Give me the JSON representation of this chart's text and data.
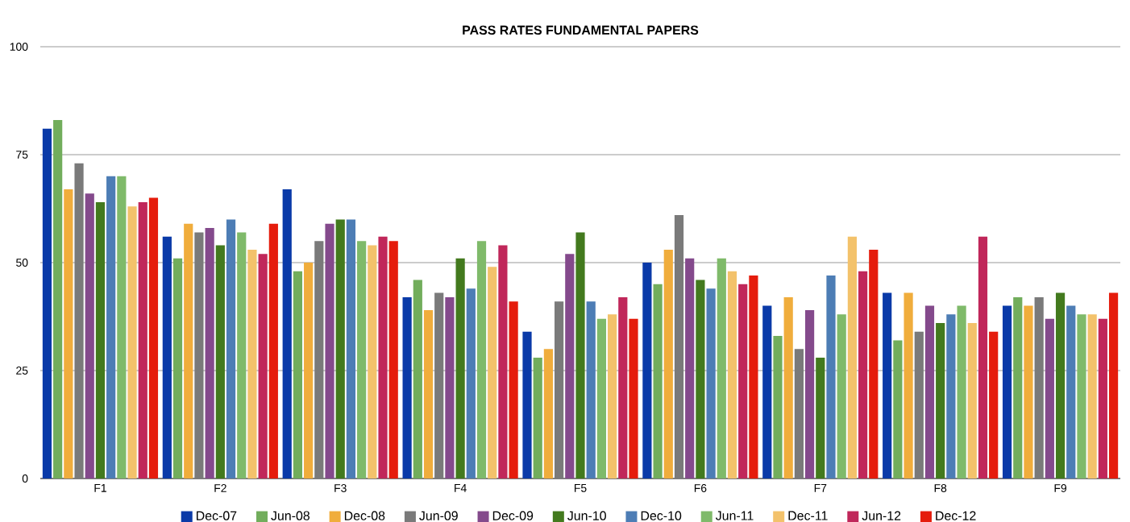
{
  "chart_data": {
    "type": "bar",
    "title": "PASS RATES FUNDAMENTAL PAPERS",
    "categories": [
      "F1",
      "F2",
      "F3",
      "F4",
      "F5",
      "F6",
      "F7",
      "F8",
      "F9"
    ],
    "ylim": [
      0,
      100
    ],
    "yticks": [
      0,
      25,
      50,
      75,
      100
    ],
    "grid": "y",
    "legend": "bottom",
    "series": [
      {
        "name": "Dec-07",
        "color": "#0a3aa8",
        "values": [
          81,
          56,
          67,
          42,
          34,
          50,
          40,
          43,
          40
        ]
      },
      {
        "name": "Jun-08",
        "color": "#72ad5c",
        "values": [
          83,
          51,
          48,
          46,
          28,
          45,
          33,
          32,
          42
        ]
      },
      {
        "name": "Dec-08",
        "color": "#f0ad3c",
        "values": [
          67,
          59,
          50,
          39,
          30,
          53,
          42,
          43,
          40
        ]
      },
      {
        "name": "Jun-09",
        "color": "#7a7a7a",
        "values": [
          73,
          57,
          55,
          43,
          41,
          61,
          30,
          34,
          42
        ]
      },
      {
        "name": "Dec-09",
        "color": "#844a8c",
        "values": [
          66,
          58,
          59,
          42,
          52,
          51,
          39,
          40,
          37
        ]
      },
      {
        "name": "Jun-10",
        "color": "#437a1e",
        "values": [
          64,
          54,
          60,
          51,
          57,
          46,
          28,
          36,
          43
        ]
      },
      {
        "name": "Dec-10",
        "color": "#4d7db5",
        "values": [
          70,
          60,
          60,
          44,
          41,
          44,
          47,
          38,
          40
        ]
      },
      {
        "name": "Jun-11",
        "color": "#7fba6a",
        "values": [
          70,
          57,
          55,
          55,
          37,
          51,
          38,
          40,
          38
        ]
      },
      {
        "name": "Dec-11",
        "color": "#f3c26b",
        "values": [
          63,
          53,
          54,
          49,
          38,
          48,
          56,
          36,
          38
        ]
      },
      {
        "name": "Jun-12",
        "color": "#c0275a",
        "values": [
          64,
          52,
          56,
          54,
          42,
          45,
          48,
          56,
          37
        ]
      },
      {
        "name": "Dec-12",
        "color": "#e51c0c",
        "values": [
          65,
          59,
          55,
          41,
          37,
          47,
          53,
          34,
          43
        ]
      }
    ]
  }
}
